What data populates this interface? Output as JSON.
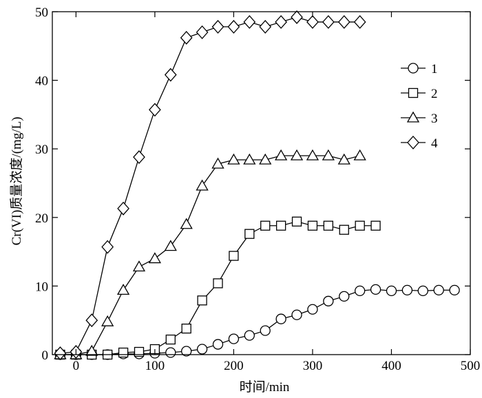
{
  "chart_data": {
    "type": "line",
    "title": "",
    "xlabel": "时间/min",
    "ylabel": "Cr(VI)质量浓度/(mg/L)",
    "xlim": [
      -30,
      500
    ],
    "ylim": [
      0,
      50
    ],
    "xticks": [
      0,
      100,
      200,
      300,
      400,
      500
    ],
    "yticks": [
      0,
      10,
      20,
      30,
      40,
      50
    ],
    "grid": false,
    "legend_position": "top-right",
    "series": [
      {
        "name": "1",
        "marker": "circle",
        "points": [
          [
            -20,
            0
          ],
          [
            0,
            0
          ],
          [
            20,
            0
          ],
          [
            40,
            0
          ],
          [
            60,
            0.1
          ],
          [
            80,
            0.1
          ],
          [
            100,
            0.2
          ],
          [
            120,
            0.3
          ],
          [
            140,
            0.5
          ],
          [
            160,
            0.8
          ],
          [
            180,
            1.5
          ],
          [
            200,
            2.3
          ],
          [
            220,
            2.8
          ],
          [
            240,
            3.5
          ],
          [
            260,
            5.2
          ],
          [
            280,
            5.8
          ],
          [
            300,
            6.6
          ],
          [
            320,
            7.8
          ],
          [
            340,
            8.5
          ],
          [
            360,
            9.3
          ],
          [
            380,
            9.5
          ],
          [
            400,
            9.3
          ],
          [
            420,
            9.4
          ],
          [
            440,
            9.3
          ],
          [
            460,
            9.4
          ],
          [
            480,
            9.4
          ]
        ]
      },
      {
        "name": "2",
        "marker": "square",
        "points": [
          [
            -20,
            0
          ],
          [
            0,
            0
          ],
          [
            20,
            0
          ],
          [
            40,
            0
          ],
          [
            60,
            0.3
          ],
          [
            80,
            0.4
          ],
          [
            100,
            0.8
          ],
          [
            120,
            2.2
          ],
          [
            140,
            3.8
          ],
          [
            160,
            7.9
          ],
          [
            180,
            10.4
          ],
          [
            200,
            14.4
          ],
          [
            220,
            17.6
          ],
          [
            240,
            18.8
          ],
          [
            260,
            18.8
          ],
          [
            280,
            19.4
          ],
          [
            300,
            18.8
          ],
          [
            320,
            18.8
          ],
          [
            340,
            18.2
          ],
          [
            360,
            18.8
          ],
          [
            380,
            18.8
          ]
        ]
      },
      {
        "name": "3",
        "marker": "triangle",
        "points": [
          [
            -20,
            0
          ],
          [
            0,
            0
          ],
          [
            20,
            0.5
          ],
          [
            40,
            4.8
          ],
          [
            60,
            9.4
          ],
          [
            80,
            12.8
          ],
          [
            100,
            14
          ],
          [
            120,
            15.8
          ],
          [
            140,
            19
          ],
          [
            160,
            24.6
          ],
          [
            180,
            27.8
          ],
          [
            200,
            28.4
          ],
          [
            220,
            28.4
          ],
          [
            240,
            28.4
          ],
          [
            260,
            29
          ],
          [
            280,
            29
          ],
          [
            300,
            29
          ],
          [
            320,
            29
          ],
          [
            340,
            28.4
          ],
          [
            360,
            29
          ]
        ]
      },
      {
        "name": "4",
        "marker": "diamond",
        "points": [
          [
            -20,
            0.2
          ],
          [
            0,
            0.4
          ],
          [
            20,
            5
          ],
          [
            40,
            15.7
          ],
          [
            60,
            21.3
          ],
          [
            80,
            28.8
          ],
          [
            100,
            35.7
          ],
          [
            120,
            40.8
          ],
          [
            140,
            46.2
          ],
          [
            160,
            47
          ],
          [
            180,
            47.8
          ],
          [
            200,
            47.8
          ],
          [
            220,
            48.5
          ],
          [
            240,
            47.8
          ],
          [
            260,
            48.5
          ],
          [
            280,
            49.2
          ],
          [
            300,
            48.5
          ],
          [
            320,
            48.5
          ],
          [
            340,
            48.5
          ],
          [
            360,
            48.5
          ]
        ]
      }
    ]
  }
}
